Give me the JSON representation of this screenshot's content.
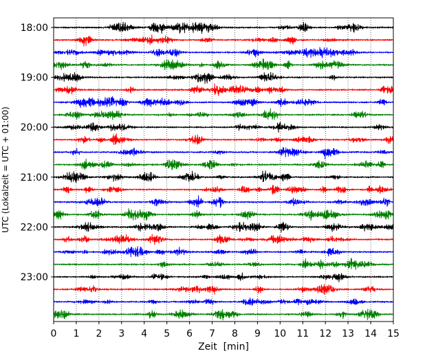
{
  "chart_data": {
    "type": "line",
    "chart_kind": "helicorder",
    "xlabel": "Zeit  [min]",
    "ylabel": "UTC (Lokalzeit = UTC + 01:00)",
    "xlim": [
      0,
      15
    ],
    "x_ticks": [
      "0",
      "1",
      "2",
      "3",
      "4",
      "5",
      "6",
      "7",
      "8",
      "9",
      "10",
      "11",
      "12",
      "13",
      "14",
      "15"
    ],
    "y_ticks": [
      {
        "label": "18:00",
        "trace": 0
      },
      {
        "label": "19:00",
        "trace": 4
      },
      {
        "label": "20:00",
        "trace": 8
      },
      {
        "label": "21:00",
        "trace": 12
      },
      {
        "label": "22:00",
        "trace": 16
      },
      {
        "label": "23:00",
        "trace": 20
      }
    ],
    "trace_count": 24,
    "trace_minutes": 15,
    "trace_colors": [
      "#000000",
      "#ff0000",
      "#0000ff",
      "#008000"
    ],
    "grid": "vertical dotted at each minute"
  }
}
